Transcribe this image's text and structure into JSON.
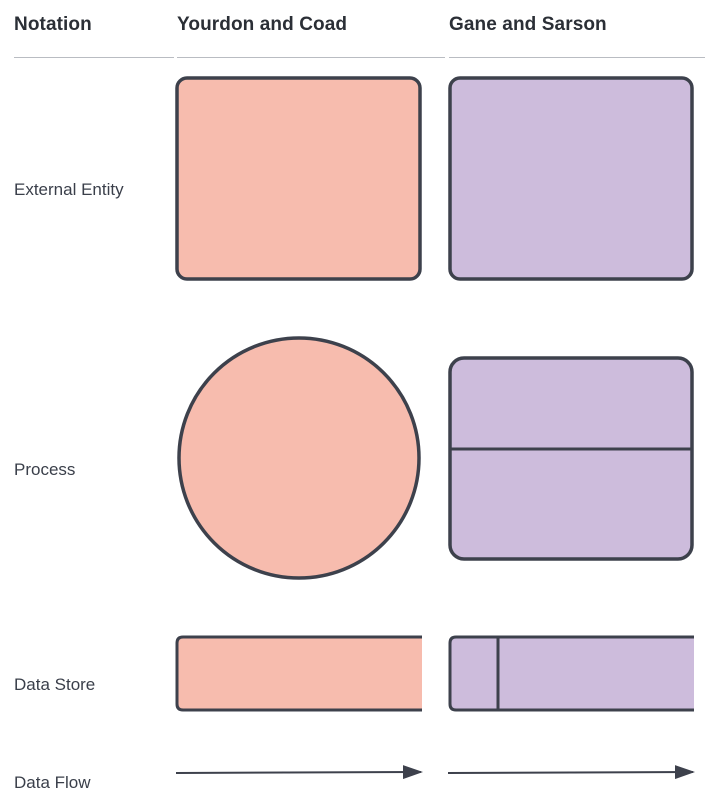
{
  "table": {
    "headers": {
      "notation": "Notation",
      "yourdon_coad": "Yourdon and Coad",
      "gane_sarson": "Gane and Sarson"
    },
    "rows": [
      {
        "label": "External Entity"
      },
      {
        "label": "Process"
      },
      {
        "label": "Data Store"
      },
      {
        "label": "Data Flow"
      }
    ]
  },
  "colors": {
    "yourdon_fill": "#f7bcae",
    "gane_fill": "#cdbcdc",
    "stroke": "#3d414c",
    "header_rule": "#b9bcc2"
  }
}
